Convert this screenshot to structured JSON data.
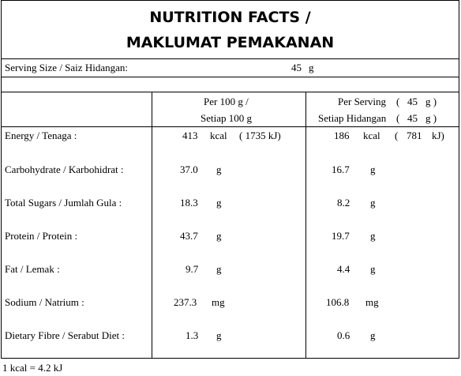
{
  "title": {
    "line1": "NUTRITION FACTS /",
    "line2": "MAKLUMAT PEMAKANAN"
  },
  "serving": {
    "label": "Serving Size / Saiz Hidangan:",
    "value": "45",
    "unit": "g"
  },
  "header": {
    "per100_line1": "Per 100 g /",
    "per100_line2": "Setiap 100 g",
    "perserving_line1_a": "Per Serving",
    "perserving_line1_b": "(",
    "perserving_line1_c": "45",
    "perserving_line1_d": "g )",
    "perserving_line2_a": "Setiap Hidangan",
    "perserving_line2_b": "(",
    "perserving_line2_c": "45",
    "perserving_line2_d": "g )"
  },
  "rows": [
    {
      "label": "Energy / Tenaga :",
      "v100": "413",
      "u100": "kcal",
      "kj100": "( 1735 kJ)",
      "vs": "186",
      "us": "kcal",
      "kjs_open": "(",
      "kjs_val": "781",
      "kjs_close": "kJ)"
    },
    {
      "label": "Carbohydrate / Karbohidrat :",
      "v100": "37.0",
      "u100": "g",
      "vs": "16.7",
      "us": "g"
    },
    {
      "label": "Total Sugars / Jumlah Gula :",
      "v100": "18.3",
      "u100": "g",
      "vs": "8.2",
      "us": "g"
    },
    {
      "label": "Protein / Protein :",
      "v100": "43.7",
      "u100": "g",
      "vs": "19.7",
      "us": "g"
    },
    {
      "label": "Fat / Lemak :",
      "v100": "9.7",
      "u100": "g",
      "vs": "4.4",
      "us": "g"
    },
    {
      "label": "Sodium / Natrium :",
      "v100": "237.3",
      "u100": "mg",
      "vs": "106.8",
      "us": "mg"
    },
    {
      "label": "Dietary Fibre / Serabut Diet :",
      "v100": "1.3",
      "u100": "g",
      "vs": "0.6",
      "us": "g"
    }
  ],
  "footnote": "1 kcal = 4.2 kJ"
}
